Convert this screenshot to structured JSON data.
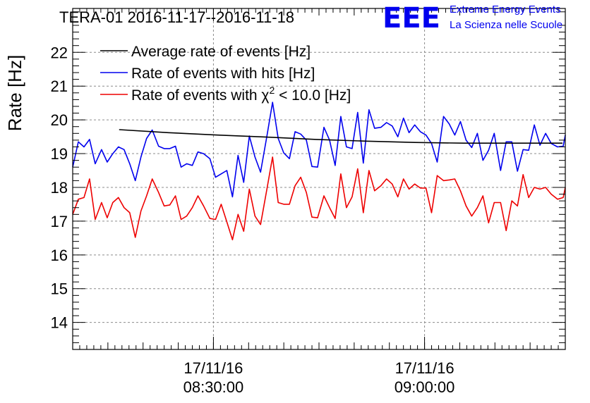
{
  "chart_data": {
    "type": "line",
    "title": "TERA-01 2016-11-17--2016-11-18",
    "xlabel": "",
    "ylabel": "Rate [Hz]",
    "ylim": [
      13.2,
      23.3
    ],
    "yticks": [
      14,
      15,
      16,
      17,
      18,
      19,
      20,
      21,
      22
    ],
    "xlim_minutes": [
      "08:10",
      "09:20"
    ],
    "xticks": [
      {
        "date": "17/11/16",
        "time": "08:30:00",
        "minutes": 20
      },
      {
        "date": "17/11/16",
        "time": "09:00:00",
        "minutes": 50
      }
    ],
    "grid": true,
    "legend_position": "top-left",
    "series": [
      {
        "name": "Average rate of events [Hz]",
        "color": "#000000",
        "x": [
          6.6,
          13.6,
          20.6,
          27.6,
          34.6,
          41.6,
          48.6,
          55.6,
          62.6,
          69.6
        ],
        "values": [
          19.71,
          19.62,
          19.55,
          19.49,
          19.42,
          19.37,
          19.33,
          19.31,
          19.31,
          19.31
        ]
      },
      {
        "name": "Rate of events with hits [Hz]",
        "color": "#0000ee",
        "x": [
          0.0,
          0.8,
          1.6,
          2.4,
          3.2,
          4.1,
          4.9,
          5.7,
          6.5,
          7.3,
          8.1,
          8.9,
          9.7,
          10.5,
          11.3,
          12.2,
          13.0,
          13.8,
          14.6,
          15.4,
          16.2,
          17.0,
          17.8,
          18.6,
          19.5,
          20.3,
          21.1,
          21.9,
          22.7,
          23.5,
          24.3,
          25.1,
          25.9,
          26.7,
          27.6,
          28.4,
          29.2,
          30.0,
          30.8,
          31.6,
          32.4,
          33.2,
          34.0,
          34.8,
          35.7,
          36.5,
          37.3,
          38.1,
          38.9,
          39.7,
          40.5,
          41.3,
          42.1,
          42.9,
          43.8,
          44.6,
          45.4,
          46.2,
          47.0,
          47.8,
          48.6,
          49.4,
          50.2,
          51.0,
          51.8,
          52.7,
          53.5,
          54.3,
          55.1,
          55.9,
          56.7,
          57.5,
          58.3,
          59.1,
          59.9,
          60.8,
          61.6,
          62.4,
          63.2,
          64.0,
          64.8,
          65.6,
          66.4,
          67.2,
          68.0,
          68.9,
          69.7,
          70.0
        ],
        "values": [
          18.6,
          19.35,
          19.2,
          19.42,
          18.7,
          19.12,
          18.75,
          19.0,
          19.2,
          19.12,
          18.7,
          18.2,
          18.9,
          19.45,
          19.7,
          19.22,
          19.15,
          19.15,
          19.22,
          18.6,
          18.7,
          18.65,
          19.05,
          19.0,
          18.85,
          18.3,
          18.4,
          18.5,
          17.72,
          18.95,
          18.15,
          19.52,
          18.9,
          18.45,
          19.52,
          20.52,
          19.45,
          19.02,
          18.85,
          19.65,
          19.58,
          19.4,
          18.62,
          18.6,
          19.78,
          19.4,
          18.65,
          20.1,
          19.2,
          19.15,
          20.22,
          18.72,
          20.3,
          19.75,
          19.78,
          19.92,
          19.82,
          19.5,
          20.05,
          19.62,
          19.85,
          19.65,
          19.55,
          19.3,
          18.75,
          20.1,
          19.88,
          19.55,
          19.95,
          19.4,
          19.18,
          19.6,
          18.8,
          19.1,
          19.6,
          18.5,
          19.35,
          19.35,
          18.48,
          19.12,
          19.1,
          19.85,
          19.25,
          19.6,
          19.3,
          19.2,
          19.22,
          19.55
        ]
      },
      {
        "name": "Rate of events with χ² < 10.0 [Hz]",
        "color": "#ee0000",
        "x": [
          0.0,
          0.8,
          1.6,
          2.4,
          3.2,
          4.1,
          4.9,
          5.7,
          6.5,
          7.3,
          8.1,
          8.9,
          9.7,
          10.5,
          11.3,
          12.2,
          13.0,
          13.8,
          14.6,
          15.4,
          16.2,
          17.0,
          17.8,
          18.6,
          19.5,
          20.3,
          21.1,
          21.9,
          22.7,
          23.5,
          24.3,
          25.1,
          25.9,
          26.7,
          27.6,
          28.4,
          29.2,
          30.0,
          30.8,
          31.6,
          32.4,
          33.2,
          34.0,
          34.8,
          35.7,
          36.5,
          37.3,
          38.1,
          38.9,
          39.7,
          40.5,
          41.3,
          42.1,
          42.9,
          43.8,
          44.6,
          45.4,
          46.2,
          47.0,
          47.8,
          48.6,
          49.4,
          50.2,
          51.0,
          51.8,
          52.7,
          53.5,
          54.3,
          55.1,
          55.9,
          56.7,
          57.5,
          58.3,
          59.1,
          59.9,
          60.8,
          61.6,
          62.4,
          63.2,
          64.0,
          64.8,
          65.6,
          66.4,
          67.2,
          68.0,
          68.9,
          69.7,
          70.0
        ],
        "values": [
          17.2,
          17.65,
          17.7,
          18.25,
          17.05,
          17.55,
          17.1,
          17.55,
          17.7,
          17.4,
          17.25,
          16.52,
          17.3,
          17.75,
          18.25,
          17.85,
          17.45,
          17.48,
          17.75,
          17.05,
          17.15,
          17.4,
          17.75,
          17.45,
          17.08,
          17.05,
          17.5,
          16.98,
          16.45,
          17.2,
          16.7,
          17.95,
          17.15,
          16.9,
          17.95,
          18.9,
          17.55,
          17.5,
          17.5,
          18.05,
          18.3,
          17.85,
          17.12,
          17.1,
          17.75,
          17.4,
          17.08,
          18.4,
          17.4,
          17.72,
          18.55,
          17.25,
          18.5,
          17.9,
          18.05,
          18.25,
          18.1,
          17.72,
          18.25,
          17.95,
          18.1,
          17.98,
          17.98,
          17.25,
          18.35,
          18.2,
          18.22,
          18.25,
          17.9,
          17.45,
          17.15,
          17.4,
          17.75,
          16.95,
          17.55,
          17.55,
          16.72,
          17.6,
          17.45,
          18.38,
          17.7,
          18.0,
          17.95,
          18.0,
          17.8,
          17.65,
          17.7,
          18.0
        ]
      }
    ]
  },
  "logo": {
    "mark": "EEE",
    "line1": "Extreme Energy Events",
    "line2": "La Scienza nelle Scuole",
    "color": "#0000ee"
  }
}
